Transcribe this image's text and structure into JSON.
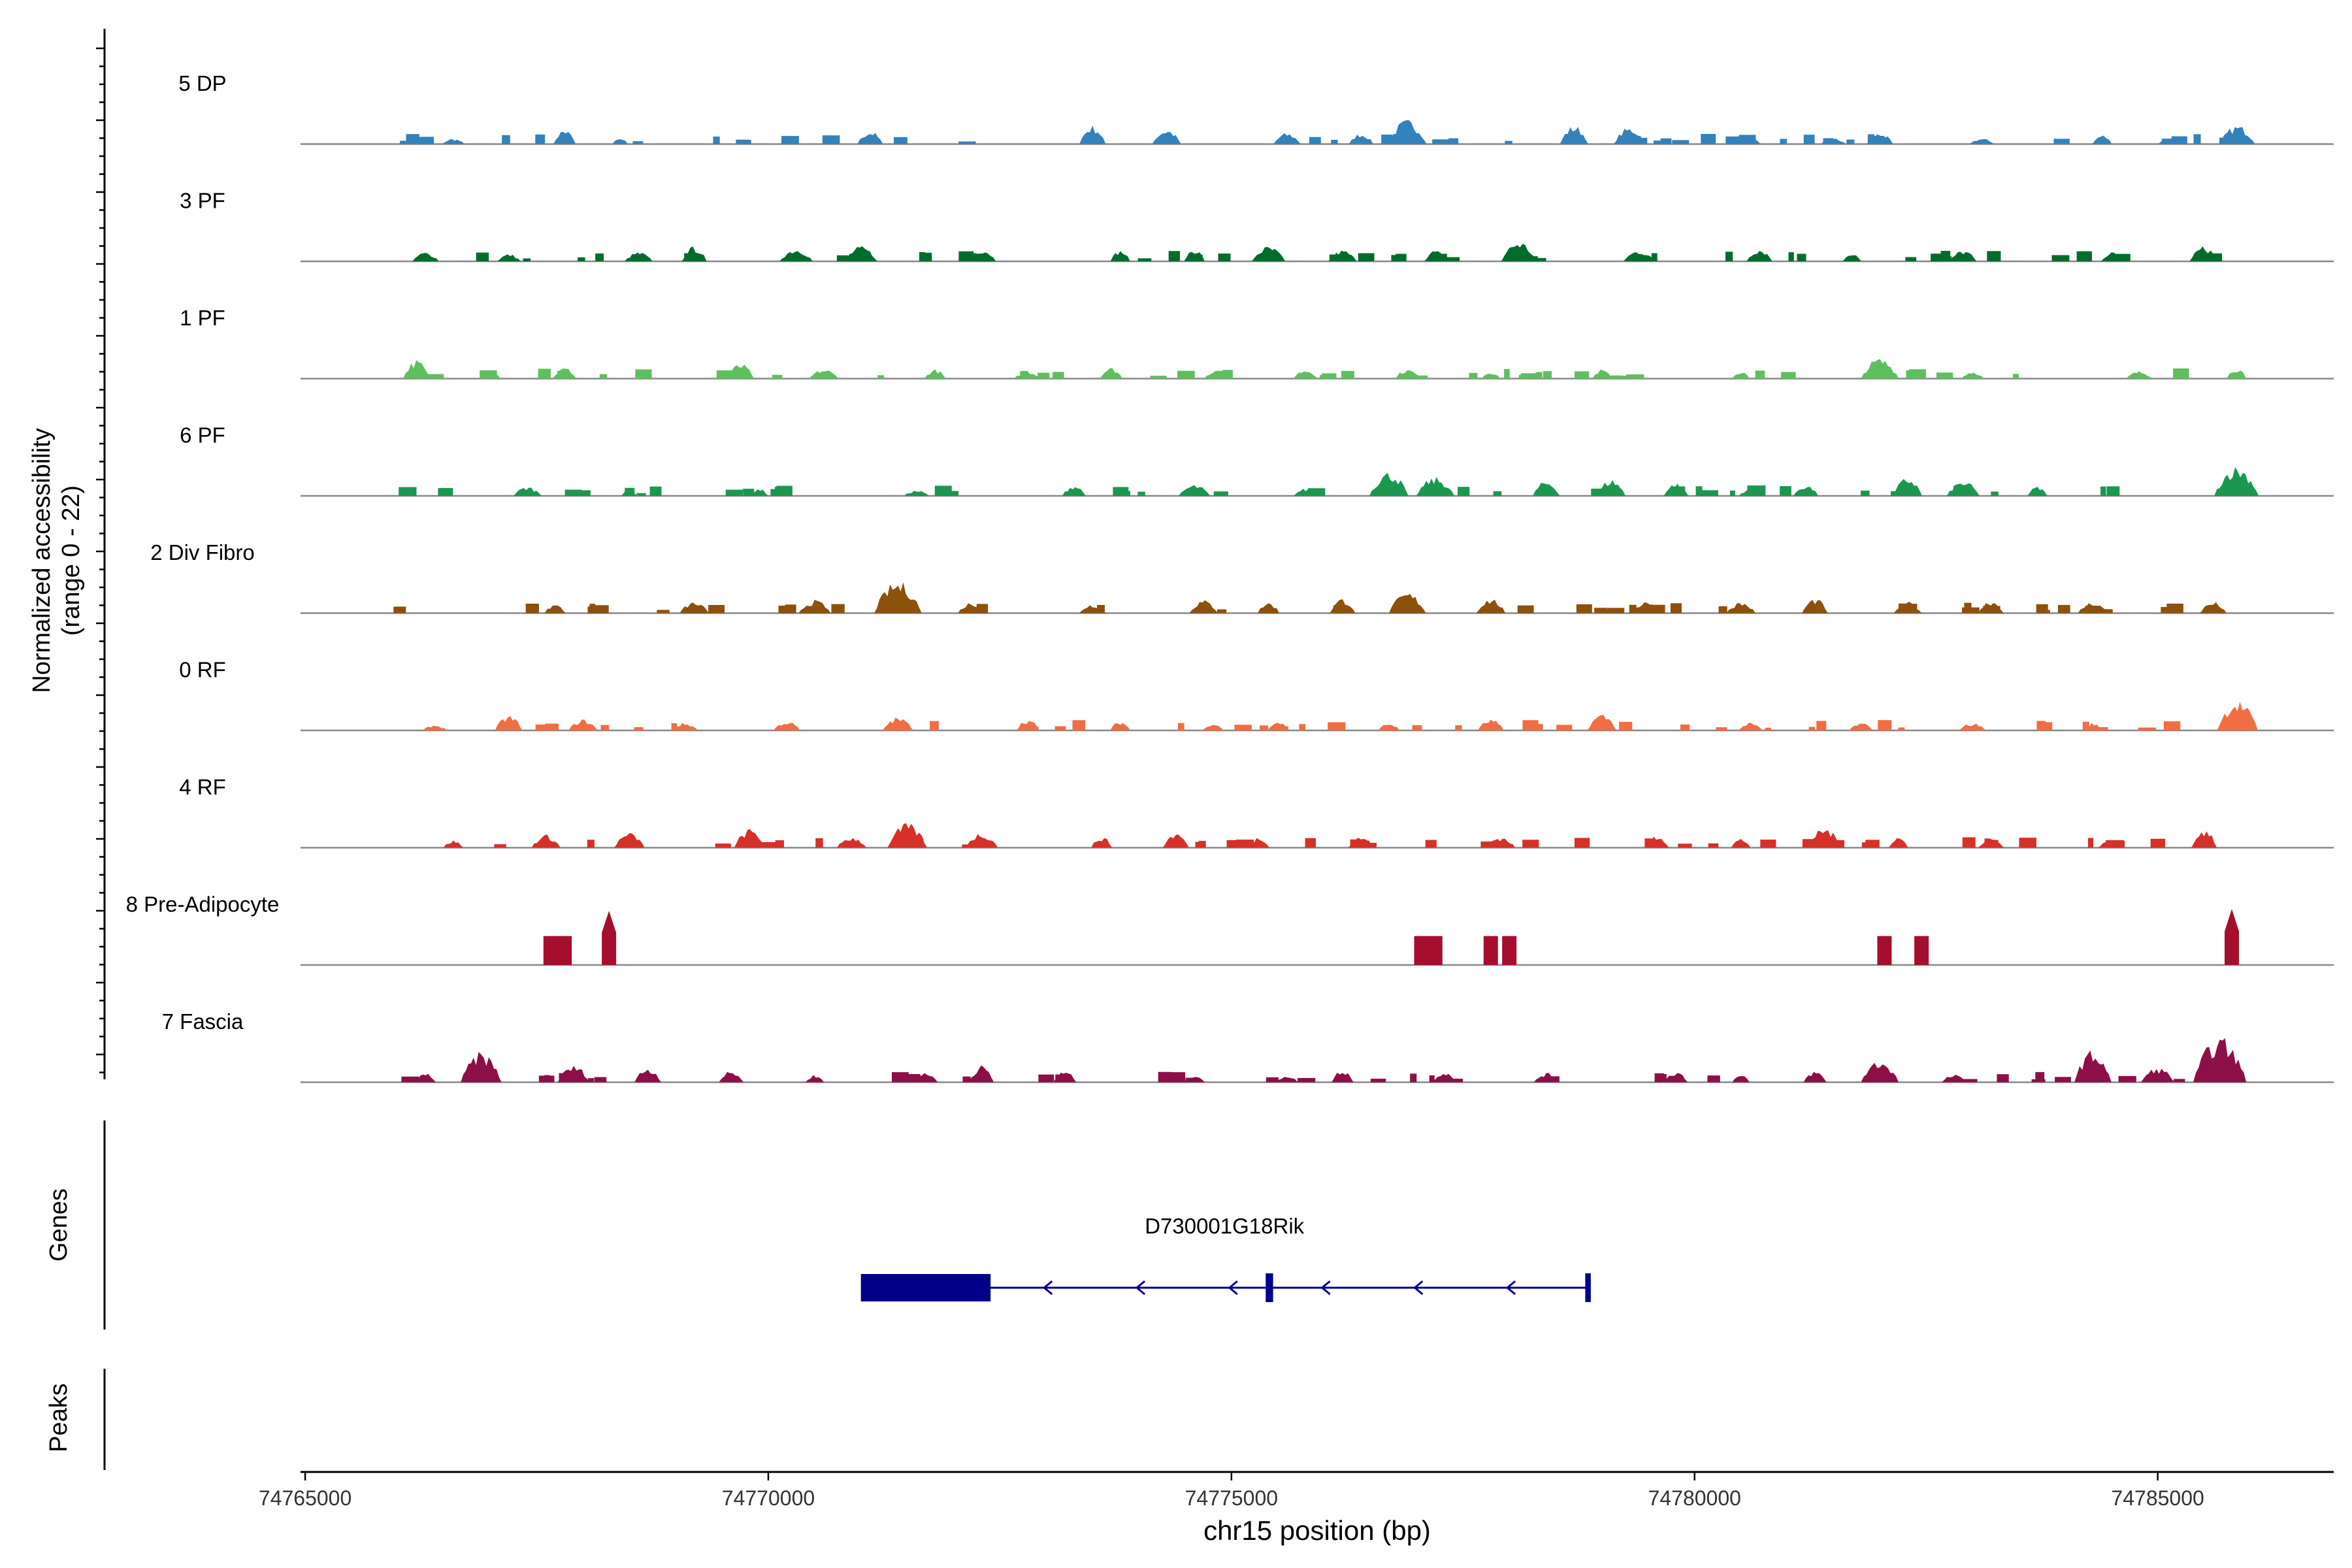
{
  "chart_data": {
    "type": "coverage_track",
    "y_axis_title": "Normalized accessibility",
    "y_axis_subtitle": "(range 0 - 22)",
    "y_range": [
      0,
      22
    ],
    "x_axis_title": "chr15 position (bp)",
    "x_range": [
      74764950,
      74786900
    ],
    "x_ticks": [
      74765000,
      74770000,
      74775000,
      74780000,
      74785000
    ],
    "x_tick_labels": [
      "74765000",
      "74770000",
      "74775000",
      "74780000",
      "74785000"
    ],
    "region": {
      "start": 74765900,
      "end": 74785900
    },
    "tracks": [
      {
        "name": "5 DP",
        "color": "#3182bd",
        "peaks": [
          [
            74767800,
            4
          ],
          [
            74766600,
            1.5
          ],
          [
            74768400,
            1.5
          ],
          [
            74771100,
            3.5
          ],
          [
            74773500,
            5
          ],
          [
            74774300,
            4
          ],
          [
            74775600,
            3
          ],
          [
            74776400,
            3
          ],
          [
            74776900,
            6.5
          ],
          [
            74778700,
            5
          ],
          [
            74779300,
            4.5
          ],
          [
            74780600,
            1.5
          ],
          [
            74781500,
            1.5
          ],
          [
            74782000,
            3
          ],
          [
            74783100,
            1.5
          ],
          [
            74784400,
            2.5
          ],
          [
            74785100,
            1.5
          ],
          [
            74785860,
            5
          ]
        ]
      },
      {
        "name": "3 PF",
        "color": "#006d2c",
        "peaks": [
          [
            74766300,
            2.5
          ],
          [
            74767200,
            2
          ],
          [
            74768600,
            2.5
          ],
          [
            74769200,
            4
          ],
          [
            74770300,
            3.5
          ],
          [
            74771000,
            4
          ],
          [
            74772300,
            3.5
          ],
          [
            74773800,
            3
          ],
          [
            74774600,
            3.5
          ],
          [
            74775400,
            4
          ],
          [
            74776200,
            3
          ],
          [
            74777200,
            3
          ],
          [
            74778100,
            5.5
          ],
          [
            74779400,
            3
          ],
          [
            74780700,
            3.5
          ],
          [
            74781700,
            2.5
          ],
          [
            74782900,
            3
          ],
          [
            74784500,
            2.5
          ],
          [
            74785500,
            4
          ]
        ]
      },
      {
        "name": "1 PF",
        "color": "#5fbf5f",
        "peaks": [
          [
            74766200,
            5
          ],
          [
            74767000,
            2.5
          ],
          [
            74767800,
            3
          ],
          [
            74769700,
            4
          ],
          [
            74770600,
            2.5
          ],
          [
            74771800,
            2.5
          ],
          [
            74772800,
            2
          ],
          [
            74773700,
            3
          ],
          [
            74774800,
            2
          ],
          [
            74775800,
            2.5
          ],
          [
            74776900,
            2.5
          ],
          [
            74777800,
            2
          ],
          [
            74779000,
            2.5
          ],
          [
            74780500,
            2
          ],
          [
            74782000,
            5.5
          ],
          [
            74783000,
            2
          ],
          [
            74784800,
            2
          ],
          [
            74785850,
            3
          ]
        ]
      },
      {
        "name": "6 PF",
        "color": "#1a9850",
        "peaks": [
          [
            74767400,
            2.5
          ],
          [
            74768500,
            2
          ],
          [
            74769900,
            2
          ],
          [
            74771600,
            1.5
          ],
          [
            74773300,
            3
          ],
          [
            74774600,
            3
          ],
          [
            74775800,
            2
          ],
          [
            74776700,
            6.5
          ],
          [
            74777200,
            5
          ],
          [
            74778400,
            4
          ],
          [
            74779100,
            4.5
          ],
          [
            74779800,
            3.5
          ],
          [
            74780600,
            2
          ],
          [
            74781200,
            3
          ],
          [
            74782300,
            5
          ],
          [
            74782900,
            4
          ],
          [
            74783700,
            2.5
          ],
          [
            74785850,
            8
          ]
        ]
      },
      {
        "name": "2 Div Fibro",
        "color": "#8c510a",
        "peaks": [
          [
            74767700,
            2.5
          ],
          [
            74769200,
            3
          ],
          [
            74770500,
            3.5
          ],
          [
            74771400,
            8.5
          ],
          [
            74772200,
            3
          ],
          [
            74773500,
            2.5
          ],
          [
            74774700,
            3.5
          ],
          [
            74775400,
            3
          ],
          [
            74776200,
            4
          ],
          [
            74776900,
            5.5
          ],
          [
            74777800,
            4
          ],
          [
            74779500,
            3.5
          ],
          [
            74780500,
            3
          ],
          [
            74781300,
            4
          ],
          [
            74782300,
            3
          ],
          [
            74783200,
            3.5
          ],
          [
            74784300,
            3
          ],
          [
            74785600,
            3
          ]
        ]
      },
      {
        "name": "0 RF",
        "color": "#f16d43",
        "peaks": [
          [
            74766400,
            1.5
          ],
          [
            74767200,
            4
          ],
          [
            74768000,
            3
          ],
          [
            74769100,
            2
          ],
          [
            74770200,
            2.5
          ],
          [
            74771400,
            3.5
          ],
          [
            74772800,
            3
          ],
          [
            74773800,
            2.5
          ],
          [
            74774800,
            2
          ],
          [
            74775500,
            2.5
          ],
          [
            74776700,
            2
          ],
          [
            74777800,
            3
          ],
          [
            74779000,
            4.5
          ],
          [
            74780600,
            2
          ],
          [
            74781800,
            2
          ],
          [
            74783000,
            2
          ],
          [
            74784300,
            2
          ],
          [
            74785860,
            8
          ]
        ]
      },
      {
        "name": "4 RF",
        "color": "#d73027",
        "peaks": [
          [
            74766600,
            2
          ],
          [
            74767600,
            3.5
          ],
          [
            74768500,
            4
          ],
          [
            74769800,
            5
          ],
          [
            74770900,
            3
          ],
          [
            74771500,
            6.5
          ],
          [
            74772300,
            4
          ],
          [
            74773600,
            3
          ],
          [
            74774400,
            4
          ],
          [
            74775300,
            3
          ],
          [
            74776400,
            3
          ],
          [
            74777900,
            3
          ],
          [
            74779600,
            3.5
          ],
          [
            74780500,
            2.5
          ],
          [
            74781400,
            5.5
          ],
          [
            74782200,
            3
          ],
          [
            74783200,
            2.5
          ],
          [
            74784500,
            2
          ],
          [
            74785500,
            5
          ]
        ]
      },
      {
        "name": "8 Pre-Adipocyte",
        "color": "#a50f2d",
        "peaks": [
          [
            74767650,
            7.5
          ],
          [
            74767800,
            7.5
          ],
          [
            74768280,
            14
          ],
          [
            74777050,
            7.5
          ],
          [
            74777200,
            7.5
          ],
          [
            74777800,
            7.5
          ],
          [
            74778000,
            7.5
          ],
          [
            74782050,
            7.5
          ],
          [
            74782450,
            7.5
          ],
          [
            74785800,
            14.5
          ]
        ]
      },
      {
        "name": "7 Fascia",
        "color": "#8c0f48",
        "peaks": [
          [
            74766300,
            2.5
          ],
          [
            74766900,
            8
          ],
          [
            74767900,
            4.5
          ],
          [
            74768700,
            4
          ],
          [
            74769600,
            3
          ],
          [
            74770500,
            2
          ],
          [
            74771700,
            2.5
          ],
          [
            74772300,
            4.5
          ],
          [
            74773200,
            3
          ],
          [
            74774600,
            2
          ],
          [
            74775600,
            2
          ],
          [
            74776200,
            3.5
          ],
          [
            74777300,
            3
          ],
          [
            74778400,
            2.5
          ],
          [
            74779800,
            3
          ],
          [
            74780500,
            2
          ],
          [
            74781300,
            3
          ],
          [
            74782000,
            6
          ],
          [
            74782800,
            2
          ],
          [
            74784300,
            8.5
          ],
          [
            74785000,
            4
          ],
          [
            74785670,
            12
          ]
        ]
      }
    ],
    "genes_label": "Genes",
    "peaks_label": "Peaks",
    "gene": {
      "name": "D730001G18Rik",
      "color": "#00008b",
      "start": 74771000,
      "end": 74778850,
      "exons": [
        [
          74771000,
          74772400
        ],
        [
          74775370,
          74775450
        ],
        [
          74778820,
          74778880
        ]
      ],
      "strand": "-",
      "arrow_positions": [
        74773000,
        74774000,
        74775000,
        74776000,
        74777000,
        74778000
      ]
    }
  }
}
